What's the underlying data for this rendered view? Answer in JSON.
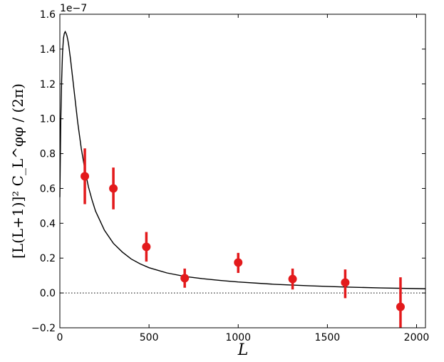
{
  "chart_data": {
    "type": "scatter",
    "title": "",
    "xlabel": "L",
    "ylabel": "[L(L+1)]² C_L^φφ / (2π)",
    "y_multiplier": "1e−7",
    "xlim": [
      0,
      2050
    ],
    "ylim": [
      -0.2,
      1.6
    ],
    "x_ticks": [
      0,
      500,
      1000,
      1500,
      2000
    ],
    "x_tick_labels": [
      "0",
      "500",
      "1000",
      "1500",
      "2000"
    ],
    "y_ticks": [
      -0.2,
      0.0,
      0.2,
      0.4,
      0.6,
      0.8,
      1.0,
      1.2,
      1.4,
      1.6
    ],
    "y_tick_labels": [
      "−0.2",
      "0.0",
      "0.2",
      "0.4",
      "0.6",
      "0.8",
      "1.0",
      "1.2",
      "1.4",
      "1.6"
    ],
    "grid": false,
    "reference_line": {
      "y": 0.0,
      "style": "dotted",
      "color": "#000000"
    },
    "series": [
      {
        "kind": "points-with-errorbars",
        "color": "#e31a1c",
        "points": [
          {
            "x": 140,
            "y": 0.67,
            "yerr_low": 0.51,
            "yerr_high": 0.83
          },
          {
            "x": 300,
            "y": 0.6,
            "yerr_low": 0.48,
            "yerr_high": 0.72
          },
          {
            "x": 485,
            "y": 0.265,
            "yerr_low": 0.18,
            "yerr_high": 0.35
          },
          {
            "x": 700,
            "y": 0.085,
            "yerr_low": 0.03,
            "yerr_high": 0.14
          },
          {
            "x": 1000,
            "y": 0.175,
            "yerr_low": 0.115,
            "yerr_high": 0.23
          },
          {
            "x": 1305,
            "y": 0.08,
            "yerr_low": 0.02,
            "yerr_high": 0.14
          },
          {
            "x": 1600,
            "y": 0.06,
            "yerr_low": -0.03,
            "yerr_high": 0.135
          },
          {
            "x": 1910,
            "y": -0.08,
            "yerr_low": -0.2,
            "yerr_high": 0.09
          }
        ]
      },
      {
        "kind": "line",
        "color": "#000000",
        "x": [
          0,
          5,
          10,
          15,
          20,
          25,
          30,
          35,
          40,
          45,
          50,
          60,
          70,
          80,
          90,
          100,
          120,
          140,
          160,
          180,
          200,
          250,
          300,
          350,
          400,
          450,
          500,
          600,
          700,
          800,
          900,
          1000,
          1200,
          1400,
          1600,
          1800,
          2000,
          2050
        ],
        "y": [
          0.55,
          0.98,
          1.22,
          1.38,
          1.46,
          1.49,
          1.5,
          1.49,
          1.475,
          1.45,
          1.42,
          1.34,
          1.25,
          1.16,
          1.07,
          0.98,
          0.83,
          0.71,
          0.61,
          0.535,
          0.47,
          0.36,
          0.285,
          0.235,
          0.195,
          0.167,
          0.145,
          0.115,
          0.095,
          0.082,
          0.072,
          0.063,
          0.05,
          0.041,
          0.034,
          0.029,
          0.025,
          0.024
        ]
      }
    ]
  }
}
